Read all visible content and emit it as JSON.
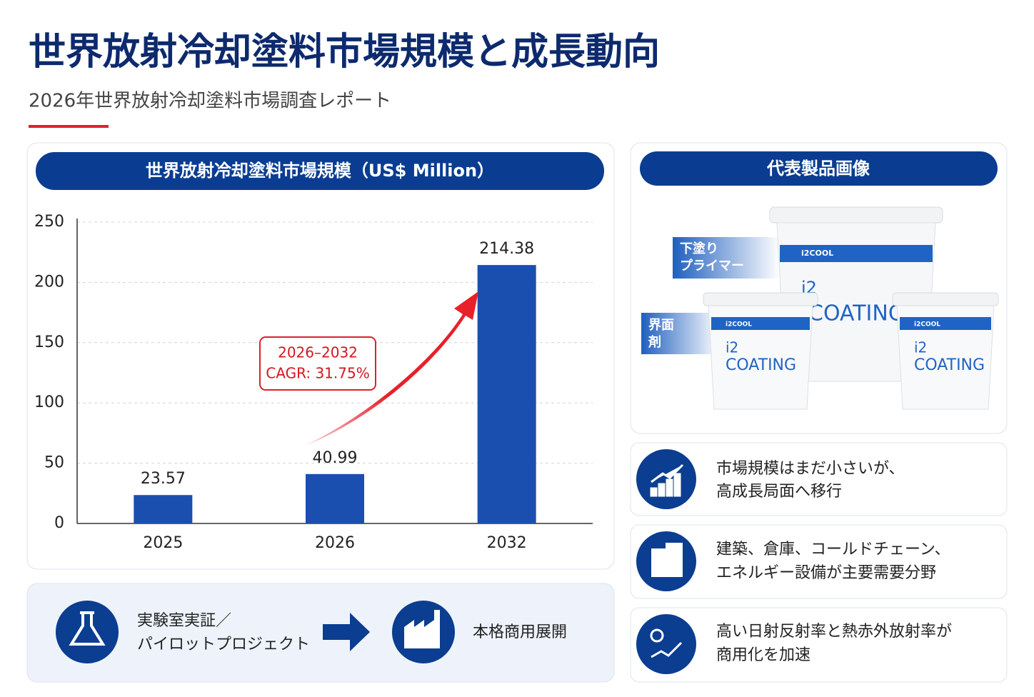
{
  "header": {
    "title": "世界放射冷却塗料市場規模と成長動向",
    "subtitle": "2026年世界放射冷却塗料市場調査レポート"
  },
  "chart_data": {
    "type": "bar",
    "title": "世界放射冷却塗料市場規模（US$ Million）",
    "categories": [
      "2025",
      "2026",
      "2032"
    ],
    "values": [
      23.57,
      40.99,
      214.38
    ],
    "color": "#1a4fb0",
    "ylim": [
      0,
      250
    ],
    "yticks": [
      0,
      50,
      100,
      150,
      200,
      250
    ],
    "grid": true,
    "annotation": [
      "2026–2032",
      "CAGR: 31.75%"
    ]
  },
  "products": {
    "title": "代表製品画像",
    "labels": [
      [
        "下塗り",
        "プライマー"
      ],
      [
        "界面",
        "剤"
      ]
    ],
    "brand": "i2COOL",
    "name": [
      "i2",
      "COATING"
    ]
  },
  "insights": [
    [
      "市場規模はまだ小さいが、",
      "高成長局面へ移行"
    ],
    [
      "建築、倉庫、コールドチェーン、",
      "エネルギー設備が主要需要分野"
    ],
    [
      "高い日射反射率と熱赤外放射率が",
      "商用化を加速"
    ]
  ],
  "flow": {
    "steps": [
      [
        "実験室実証／",
        "パイロットプロジェクト"
      ],
      [
        "本格商用展開"
      ]
    ]
  }
}
